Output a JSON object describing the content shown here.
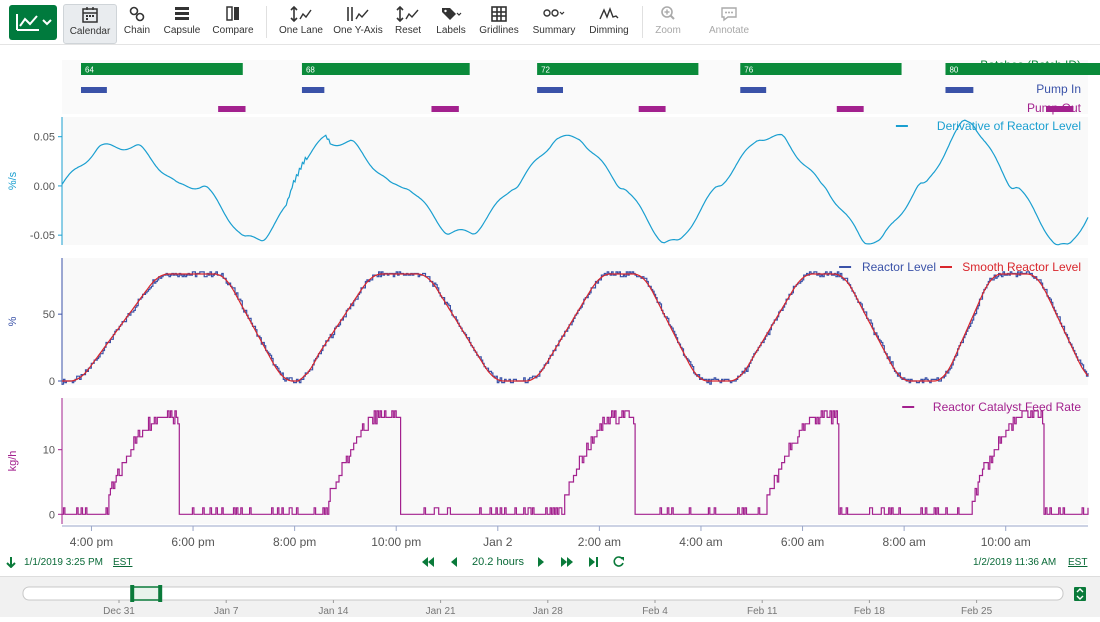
{
  "toolbar": {
    "brand_icon": "trend-chart-icon",
    "buttons": [
      {
        "label": "Calendar",
        "icon": "calendar-icon",
        "active": true
      },
      {
        "label": "Chain",
        "icon": "chain-icon"
      },
      {
        "label": "Capsule",
        "icon": "capsule-icon"
      },
      {
        "label": "Compare",
        "icon": "compare-icon"
      },
      {
        "label": "One Lane",
        "icon": "one-lane-icon"
      },
      {
        "label": "One Y-Axis",
        "icon": "one-y-axis-icon"
      },
      {
        "label": "Reset",
        "icon": "reset-icon"
      },
      {
        "label": "Labels",
        "icon": "labels-icon"
      },
      {
        "label": "Gridlines",
        "icon": "gridlines-icon"
      },
      {
        "label": "Summary",
        "icon": "summary-icon"
      },
      {
        "label": "Dimming",
        "icon": "dimming-icon"
      },
      {
        "label": "Zoom",
        "icon": "zoom-icon",
        "disabled": true
      },
      {
        "label": "Annotate",
        "icon": "annotate-icon",
        "disabled": true
      }
    ]
  },
  "capsules": {
    "lanes": [
      {
        "label": "Batches (Batch ID)",
        "color": "#0a8a3a",
        "items": [
          {
            "id": "64",
            "start": 0.0,
            "end": 3.25
          },
          {
            "id": "68",
            "start": 4.35,
            "end": 7.72
          },
          {
            "id": "72",
            "start": 8.98,
            "end": 12.22
          },
          {
            "id": "76",
            "start": 12.98,
            "end": 16.22
          },
          {
            "id": "80",
            "start": 17.02,
            "end": 20.2
          }
        ]
      },
      {
        "label": "Pump In",
        "color": "#3a52a8",
        "items": [
          {
            "start": 0.0,
            "end": 0.52
          },
          {
            "start": 4.35,
            "end": 4.8
          },
          {
            "start": 8.98,
            "end": 9.5
          },
          {
            "start": 12.98,
            "end": 13.5
          },
          {
            "start": 17.02,
            "end": 17.58
          }
        ]
      },
      {
        "label": "Pump Out",
        "color": "#a3218e",
        "items": [
          {
            "start": 2.7,
            "end": 3.25
          },
          {
            "start": 6.9,
            "end": 7.45
          },
          {
            "start": 10.98,
            "end": 11.52
          },
          {
            "start": 14.88,
            "end": 15.42
          },
          {
            "start": 19.0,
            "end": 19.55
          }
        ]
      }
    ]
  },
  "chart_data": [
    {
      "type": "line",
      "ylabel": "%/s",
      "yticks": [
        "0.05",
        "0.00",
        "-0.05"
      ],
      "ylim": [
        -0.06,
        0.07
      ],
      "series": [
        {
          "name": "Derivative of Reactor Level",
          "color": "#1a9fd0"
        }
      ]
    },
    {
      "type": "line",
      "ylabel": "%",
      "yticks": [
        "50",
        "0"
      ],
      "ylim": [
        -3,
        92
      ],
      "series": [
        {
          "name": "Reactor Level",
          "color": "#3a52a8"
        },
        {
          "name": "Smooth Reactor Level",
          "color": "#d9262c"
        }
      ]
    },
    {
      "type": "line",
      "ylabel": "kg/h",
      "yticks": [
        "10",
        "0"
      ],
      "ylim": [
        -1.5,
        18
      ],
      "series": [
        {
          "name": "Reactor Catalyst Feed Rate",
          "color": "#a3218e"
        }
      ]
    }
  ],
  "x_axis": {
    "range_hours": [
      0,
      20.2
    ],
    "ticks": [
      {
        "h": 0.58,
        "label": "4:00 pm"
      },
      {
        "h": 2.58,
        "label": "6:00 pm"
      },
      {
        "h": 4.58,
        "label": "8:00 pm"
      },
      {
        "h": 6.58,
        "label": "10:00 pm"
      },
      {
        "h": 8.58,
        "label": "Jan 2"
      },
      {
        "h": 10.58,
        "label": "2:00 am"
      },
      {
        "h": 12.58,
        "label": "4:00 am"
      },
      {
        "h": 14.58,
        "label": "6:00 am"
      },
      {
        "h": 16.58,
        "label": "8:00 am"
      },
      {
        "h": 18.58,
        "label": "10:00 am"
      }
    ]
  },
  "time_bar": {
    "start": "1/1/2019 3:25 PM",
    "start_tz": "EST",
    "duration": "20.2 hours",
    "end": "1/2/2019 11:36 AM",
    "end_tz": "EST"
  },
  "navigator": {
    "ticks": [
      "Dec 31",
      "Jan 7",
      "Jan 14",
      "Jan 21",
      "Jan 28",
      "Feb 4",
      "Feb 11",
      "Feb 18",
      "Feb 25"
    ],
    "selection": 0.105
  }
}
